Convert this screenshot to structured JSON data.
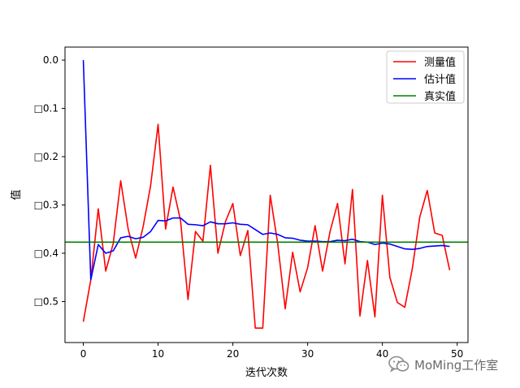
{
  "chart_data": {
    "type": "line",
    "title": "",
    "xlabel": "迭代次数",
    "ylabel": "值",
    "xlim": [
      -2.45,
      51.45
    ],
    "ylim": [
      -0.585,
      0.027
    ],
    "xticks": [
      0,
      10,
      20,
      30,
      40,
      50
    ],
    "yticks": [
      0.0,
      -0.1,
      -0.2,
      -0.3,
      -0.4,
      -0.5
    ],
    "ytick_labels": [
      "0.0",
      "□0.1",
      "□0.2",
      "□0.3",
      "□0.4",
      "□0.5"
    ],
    "legend_position": "upper right",
    "series": [
      {
        "name": "测量值",
        "color": "#ff0000",
        "x": [
          0,
          1,
          2,
          3,
          4,
          5,
          6,
          7,
          8,
          9,
          10,
          11,
          12,
          13,
          14,
          15,
          16,
          17,
          18,
          19,
          20,
          21,
          22,
          23,
          24,
          25,
          26,
          27,
          28,
          29,
          30,
          31,
          32,
          33,
          34,
          35,
          36,
          37,
          38,
          39,
          40,
          41,
          42,
          43,
          44,
          45,
          46,
          47,
          48,
          49
        ],
        "y": [
          -0.542,
          -0.455,
          -0.308,
          -0.437,
          -0.38,
          -0.25,
          -0.35,
          -0.41,
          -0.345,
          -0.26,
          -0.133,
          -0.35,
          -0.263,
          -0.332,
          -0.496,
          -0.355,
          -0.375,
          -0.218,
          -0.4,
          -0.335,
          -0.297,
          -0.405,
          -0.353,
          -0.555,
          -0.555,
          -0.28,
          -0.38,
          -0.515,
          -0.398,
          -0.48,
          -0.43,
          -0.343,
          -0.437,
          -0.355,
          -0.297,
          -0.422,
          -0.268,
          -0.53,
          -0.415,
          -0.532,
          -0.28,
          -0.45,
          -0.502,
          -0.512,
          -0.432,
          -0.325,
          -0.27,
          -0.358,
          -0.363,
          -0.435
        ]
      },
      {
        "name": "估计值",
        "color": "#0000ff",
        "x": [
          0,
          1,
          2,
          3,
          4,
          5,
          6,
          7,
          8,
          9,
          10,
          11,
          12,
          13,
          14,
          15,
          16,
          17,
          18,
          19,
          20,
          21,
          22,
          23,
          24,
          25,
          26,
          27,
          28,
          29,
          30,
          31,
          32,
          33,
          34,
          35,
          36,
          37,
          38,
          39,
          40,
          41,
          42,
          43,
          44,
          45,
          46,
          47,
          48,
          49
        ],
        "y": [
          0.0,
          -0.455,
          -0.382,
          -0.4,
          -0.395,
          -0.368,
          -0.365,
          -0.37,
          -0.367,
          -0.355,
          -0.332,
          -0.333,
          -0.327,
          -0.327,
          -0.34,
          -0.341,
          -0.343,
          -0.335,
          -0.339,
          -0.339,
          -0.337,
          -0.34,
          -0.341,
          -0.351,
          -0.361,
          -0.358,
          -0.361,
          -0.368,
          -0.369,
          -0.373,
          -0.375,
          -0.375,
          -0.376,
          -0.376,
          -0.373,
          -0.374,
          -0.371,
          -0.376,
          -0.377,
          -0.382,
          -0.379,
          -0.381,
          -0.386,
          -0.391,
          -0.392,
          -0.39,
          -0.386,
          -0.385,
          -0.384,
          -0.386
        ]
      },
      {
        "name": "真实值",
        "color": "#008000",
        "x": [
          -2.45,
          51.45
        ],
        "y": [
          -0.377,
          -0.377
        ]
      }
    ]
  },
  "watermark": {
    "text": "MoMing工作室",
    "icon": "wechat-icon"
  }
}
